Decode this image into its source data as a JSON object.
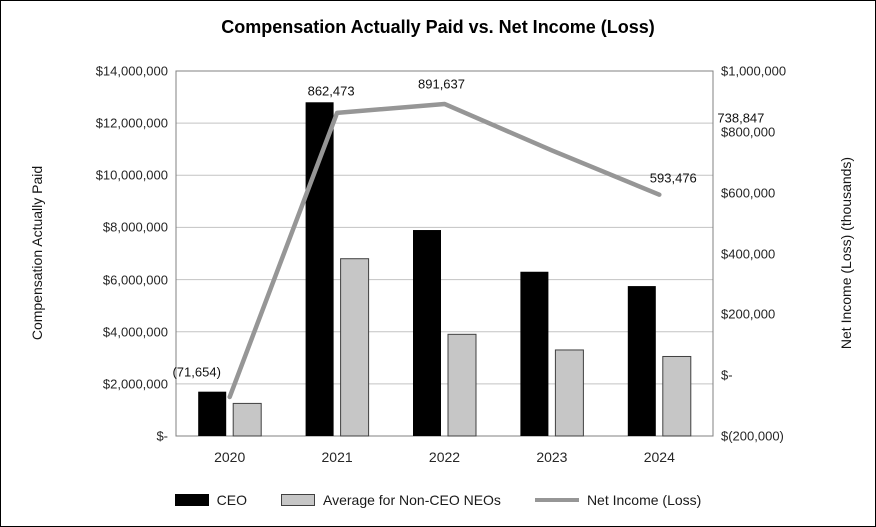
{
  "chart": {
    "title": "Compensation Actually Paid vs. Net Income (Loss)",
    "left_axis": {
      "title": "Compensation Actually Paid",
      "ticks": [
        "$-",
        "$2,000,000",
        "$4,000,000",
        "$6,000,000",
        "$8,000,000",
        "$10,000,000",
        "$12,000,000",
        "$14,000,000"
      ]
    },
    "right_axis": {
      "title": "Net Income (Loss) (thousands)",
      "ticks": [
        "$(200,000)",
        "$-",
        "$200,000",
        "$400,000",
        "$600,000",
        "$800,000",
        "$1,000,000"
      ]
    },
    "colors": {
      "ceo": "#000000",
      "neo": "#c6c6c6",
      "neo_border": "#404040",
      "line": "#969696",
      "grid": "#c3c3c3",
      "plot_border": "#808080"
    }
  },
  "chart_data": {
    "type": "bar",
    "subtype": "grouped-bars-with-line-combo-dual-axis",
    "title": "Compensation Actually Paid vs. Net Income (Loss)",
    "categories": [
      "2020",
      "2021",
      "2022",
      "2023",
      "2024"
    ],
    "series": [
      {
        "name": "CEO",
        "type": "bar",
        "axis": "left",
        "values": [
          1700000,
          12800000,
          7900000,
          6300000,
          5750000
        ]
      },
      {
        "name": "Average for Non-CEO NEOs",
        "type": "bar",
        "axis": "left",
        "values": [
          1250000,
          6800000,
          3900000,
          3300000,
          3050000
        ]
      },
      {
        "name": "Net Income (Loss)",
        "type": "line",
        "axis": "right",
        "values": [
          -71654,
          862473,
          891637,
          738847,
          593476
        ],
        "labels": [
          "(71,654)",
          "862,473",
          "891,637",
          "738,847",
          "593,476"
        ]
      }
    ],
    "xlabel": "",
    "left_ylabel": "Compensation Actually Paid",
    "right_ylabel": "Net Income (Loss) (thousands)",
    "left_ylim": [
      0,
      14000000
    ],
    "right_ylim": [
      -200000,
      1000000
    ],
    "grid": true,
    "legend_position": "bottom"
  }
}
